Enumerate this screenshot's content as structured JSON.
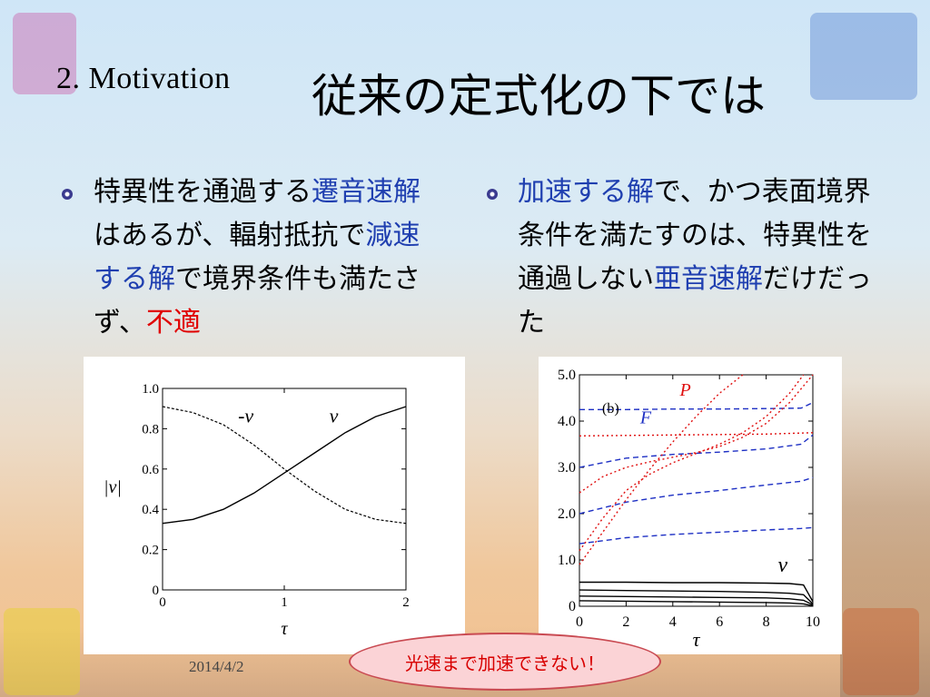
{
  "header": {
    "section_label": "2.  Motivation",
    "title": "従来の定式化の下では"
  },
  "bullets": [
    {
      "segments": [
        {
          "text": "特異性を通過する",
          "style": "normal"
        },
        {
          "text": "遷音速解",
          "style": "blue"
        },
        {
          "text": "はあるが、輻射抵抗で",
          "style": "normal"
        },
        {
          "text": "減速する解",
          "style": "blue"
        },
        {
          "text": "で境界条件も満たさず、",
          "style": "normal"
        },
        {
          "text": "不適",
          "style": "red"
        }
      ]
    },
    {
      "segments": [
        {
          "text": "加速する解",
          "style": "blue"
        },
        {
          "text": "で、かつ表面境界条件を満たすのは、特異性を通過しない",
          "style": "normal"
        },
        {
          "text": "亜音速解",
          "style": "blue"
        },
        {
          "text": "だけだった",
          "style": "normal"
        }
      ]
    }
  ],
  "colors": {
    "accent_blue": "#1f3fb0",
    "accent_red": "#e00000",
    "series_blue": "#1d2fc4",
    "series_red": "#e01010"
  },
  "chart_data": [
    {
      "type": "line",
      "xlabel": "τ",
      "ylabel": "|v|",
      "xlim": [
        0,
        2
      ],
      "ylim": [
        0,
        1.0
      ],
      "x_ticks": [
        "0",
        "1",
        "2"
      ],
      "y_ticks": [
        "0",
        "0.2",
        "0.4",
        "0.6",
        "0.8",
        "1.0"
      ],
      "grid": false,
      "annotations": [
        "-v",
        "v"
      ],
      "series": [
        {
          "name": "v",
          "style": "solid",
          "x": [
            0,
            0.25,
            0.5,
            0.75,
            1.0,
            1.25,
            1.5,
            1.75,
            2.0
          ],
          "y": [
            0.33,
            0.35,
            0.4,
            0.48,
            0.58,
            0.68,
            0.78,
            0.86,
            0.91
          ]
        },
        {
          "name": "-v",
          "style": "dashed",
          "x": [
            0,
            0.25,
            0.5,
            0.75,
            1.0,
            1.25,
            1.5,
            1.75,
            2.0
          ],
          "y": [
            0.91,
            0.88,
            0.82,
            0.72,
            0.6,
            0.49,
            0.4,
            0.35,
            0.33
          ]
        }
      ]
    },
    {
      "type": "line",
      "panel_label": "(b)",
      "xlabel": "τ",
      "xlim": [
        0,
        10
      ],
      "ylim": [
        0,
        5.0
      ],
      "x_ticks": [
        "0",
        "2",
        "4",
        "6",
        "8",
        "10"
      ],
      "y_ticks": [
        "0",
        "1.0",
        "2.0",
        "3.0",
        "4.0",
        "5.0"
      ],
      "grid": false,
      "annotations": [
        "P",
        "F",
        "v"
      ],
      "series": [
        {
          "group": "F",
          "style": "dashed-blue",
          "x": [
            0,
            2,
            4,
            6,
            8,
            9.5,
            10
          ],
          "y": [
            4.25,
            4.25,
            4.26,
            4.26,
            4.27,
            4.28,
            4.4
          ]
        },
        {
          "group": "F",
          "style": "dashed-blue",
          "x": [
            0,
            2,
            4,
            6,
            8,
            9.5,
            10
          ],
          "y": [
            3.0,
            3.2,
            3.28,
            3.33,
            3.4,
            3.5,
            3.7
          ]
        },
        {
          "group": "F",
          "style": "dashed-blue",
          "x": [
            0,
            2,
            4,
            6,
            8,
            9.5,
            10
          ],
          "y": [
            2.0,
            2.25,
            2.4,
            2.5,
            2.62,
            2.7,
            2.78
          ]
        },
        {
          "group": "F",
          "style": "dashed-blue",
          "x": [
            0,
            2,
            4,
            6,
            8,
            9.5,
            10
          ],
          "y": [
            1.35,
            1.48,
            1.55,
            1.6,
            1.65,
            1.68,
            1.7
          ]
        },
        {
          "group": "P",
          "style": "dotted-red",
          "x": [
            0,
            2,
            4,
            6,
            8,
            10
          ],
          "y": [
            3.68,
            3.69,
            3.7,
            3.71,
            3.72,
            3.75
          ]
        },
        {
          "group": "P",
          "style": "dotted-red",
          "x": [
            0,
            1,
            2,
            3,
            4,
            5,
            6,
            7
          ],
          "y": [
            0.9,
            1.6,
            2.3,
            2.95,
            3.55,
            4.1,
            4.6,
            5.0
          ]
        },
        {
          "group": "P",
          "style": "dotted-red",
          "x": [
            0,
            1,
            2,
            3,
            4,
            5,
            6,
            7,
            8,
            9,
            9.6
          ],
          "y": [
            1.2,
            1.9,
            2.5,
            2.85,
            3.1,
            3.3,
            3.5,
            3.75,
            4.1,
            4.6,
            5.0
          ]
        },
        {
          "group": "P",
          "style": "dotted-red",
          "x": [
            0,
            1,
            2,
            3,
            4,
            5,
            6,
            7,
            8,
            9,
            10
          ],
          "y": [
            2.45,
            2.8,
            3.0,
            3.12,
            3.22,
            3.32,
            3.45,
            3.65,
            3.95,
            4.4,
            5.0
          ]
        },
        {
          "group": "v",
          "style": "solid",
          "x": [
            0,
            2,
            4,
            6,
            8,
            9,
            9.6,
            10
          ],
          "y": [
            0.52,
            0.52,
            0.51,
            0.51,
            0.5,
            0.49,
            0.46,
            0.1
          ]
        },
        {
          "group": "v",
          "style": "solid",
          "x": [
            0,
            2,
            4,
            6,
            8,
            9,
            9.6,
            10
          ],
          "y": [
            0.35,
            0.34,
            0.33,
            0.32,
            0.3,
            0.28,
            0.25,
            0.05
          ]
        },
        {
          "group": "v",
          "style": "solid",
          "x": [
            0,
            2,
            4,
            6,
            8,
            9,
            9.6,
            10
          ],
          "y": [
            0.22,
            0.21,
            0.2,
            0.19,
            0.18,
            0.16,
            0.13,
            0.03
          ]
        },
        {
          "group": "v",
          "style": "solid",
          "x": [
            0,
            2,
            4,
            6,
            8,
            9,
            9.6,
            10
          ],
          "y": [
            0.12,
            0.11,
            0.1,
            0.09,
            0.08,
            0.07,
            0.05,
            0.01
          ]
        }
      ]
    }
  ],
  "footer": {
    "date": "2014/4/2",
    "callout": "光速まで加速できない！"
  }
}
